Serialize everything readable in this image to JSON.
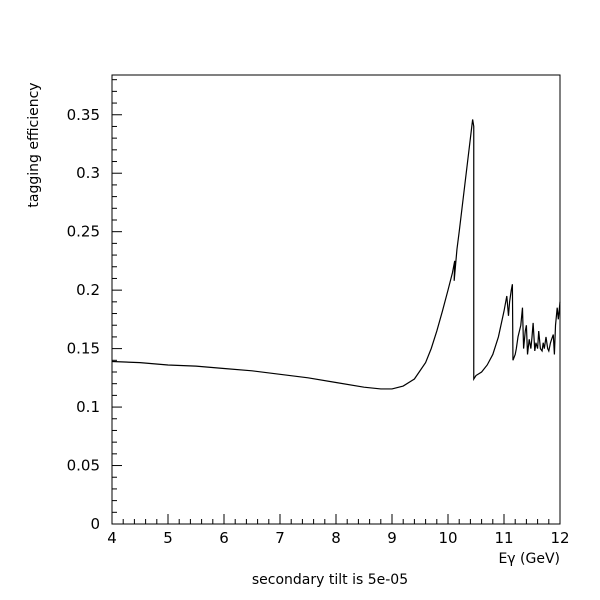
{
  "chart_data": {
    "type": "line",
    "title": "",
    "xlabel": "Eγ (GeV)",
    "ylabel": "tagging efficiency",
    "footer": "secondary tilt is 5e-05",
    "xlim": [
      4,
      12
    ],
    "ylim": [
      0,
      0.384
    ],
    "x_ticks": [
      4,
      5,
      6,
      7,
      8,
      9,
      10,
      11,
      12
    ],
    "y_ticks": [
      0,
      0.05,
      0.1,
      0.15,
      0.2,
      0.25,
      0.3,
      0.35
    ],
    "x_tick_labels": [
      "4",
      "5",
      "6",
      "7",
      "8",
      "9",
      "10",
      "11",
      "12"
    ],
    "y_tick_labels": [
      "0",
      "0.05",
      "0.1",
      "0.15",
      "0.2",
      "0.25",
      "0.3",
      "0.35"
    ],
    "grid": false,
    "line_color": "#000000",
    "series": [
      {
        "x": [
          4.0,
          4.5,
          5.0,
          5.5,
          6.0,
          6.5,
          7.0,
          7.5,
          8.0,
          8.5,
          8.8,
          9.0,
          9.2,
          9.4,
          9.6,
          9.7,
          9.8,
          9.9,
          10.0,
          10.08,
          10.12,
          10.11,
          10.16,
          10.2,
          10.25,
          10.3,
          10.35,
          10.4,
          10.44,
          10.46,
          10.46,
          10.5,
          10.6,
          10.7,
          10.8,
          10.9,
          11.0,
          11.05,
          11.08,
          11.1,
          11.13,
          11.15,
          11.16,
          11.2,
          11.22,
          11.25,
          11.3,
          11.33,
          11.35,
          11.38,
          11.4,
          11.42,
          11.45,
          11.48,
          11.5,
          11.52,
          11.55,
          11.57,
          11.6,
          11.62,
          11.65,
          11.68,
          11.7,
          11.72,
          11.75,
          11.78,
          11.8,
          11.83,
          11.85,
          11.88,
          11.9,
          11.92,
          11.95,
          11.97,
          12.0
        ],
        "y": [
          0.139,
          0.138,
          0.136,
          0.135,
          0.133,
          0.131,
          0.128,
          0.125,
          0.121,
          0.117,
          0.1155,
          0.1155,
          0.118,
          0.124,
          0.138,
          0.15,
          0.165,
          0.182,
          0.2,
          0.215,
          0.225,
          0.208,
          0.235,
          0.25,
          0.27,
          0.29,
          0.31,
          0.33,
          0.346,
          0.34,
          0.124,
          0.127,
          0.13,
          0.136,
          0.145,
          0.16,
          0.182,
          0.195,
          0.178,
          0.19,
          0.2,
          0.205,
          0.14,
          0.145,
          0.15,
          0.16,
          0.17,
          0.185,
          0.15,
          0.165,
          0.17,
          0.145,
          0.158,
          0.15,
          0.16,
          0.172,
          0.148,
          0.155,
          0.15,
          0.165,
          0.15,
          0.148,
          0.155,
          0.15,
          0.16,
          0.15,
          0.148,
          0.155,
          0.158,
          0.162,
          0.145,
          0.17,
          0.185,
          0.175,
          0.19
        ]
      }
    ]
  }
}
